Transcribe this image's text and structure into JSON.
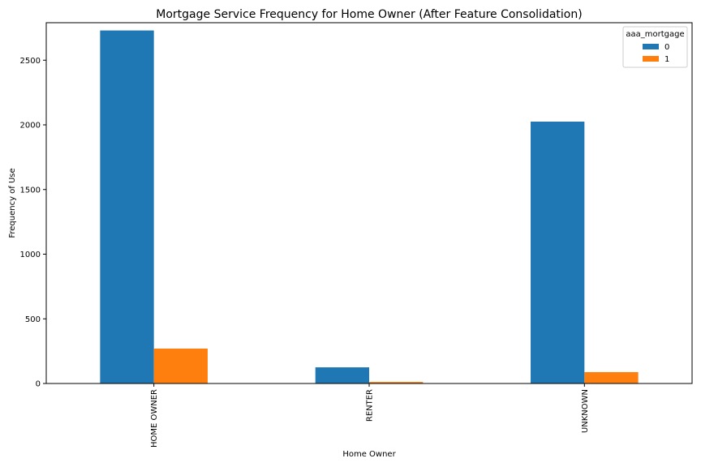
{
  "chart_data": {
    "type": "bar",
    "title": "Mortgage Service Frequency for Home Owner (After Feature Consolidation)",
    "xlabel": "Home Owner",
    "ylabel": "Frequency of Use",
    "categories": [
      "HOME OWNER",
      "RENTER",
      "UNKNOWN"
    ],
    "series": [
      {
        "name": "0",
        "values": [
          2730,
          125,
          2025
        ],
        "color": "#1f77b4"
      },
      {
        "name": "1",
        "values": [
          270,
          12,
          88
        ],
        "color": "#ff7f0e"
      }
    ],
    "ylim": [
      0,
      2790
    ],
    "yticks": [
      0,
      500,
      1000,
      1500,
      2000,
      2500
    ],
    "grid": false,
    "legend": {
      "title": "aaa_mortgage",
      "placement": "top-right"
    }
  }
}
